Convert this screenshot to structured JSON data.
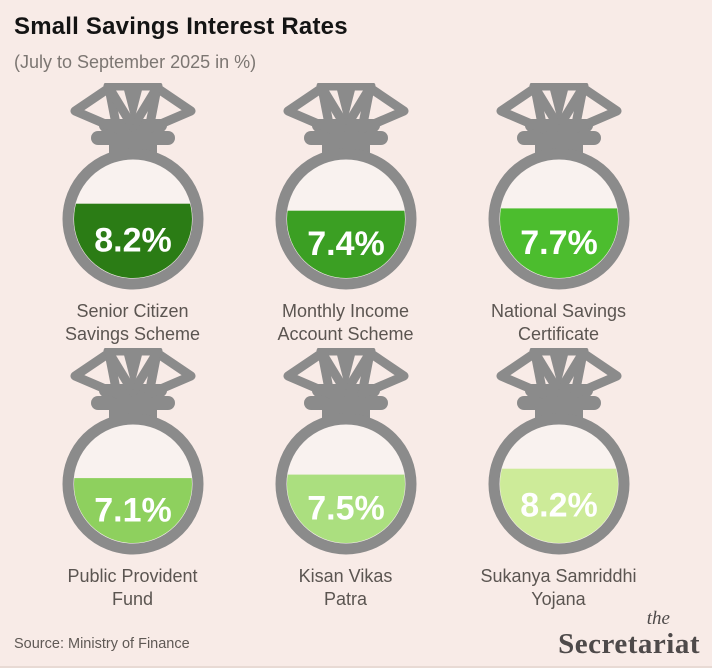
{
  "header": {
    "title": "Small Savings Interest Rates",
    "subtitle": "(July to September 2025 in %)"
  },
  "chart_data": {
    "type": "bar",
    "style": "pictogram-money-bags-fill",
    "title": "Small Savings Interest Rates",
    "subtitle": "(July to September 2025 in %)",
    "unit": "%",
    "categories": [
      "Senior Citizen Savings Scheme",
      "Monthly Income Account Scheme",
      "National Savings Certificate",
      "Public Provident Fund",
      "Kisan Vikas Patra",
      "Sukanya Samriddhi Yojana"
    ],
    "values": [
      8.2,
      7.4,
      7.7,
      7.1,
      7.5,
      8.2
    ],
    "items": [
      {
        "label_line1": "Senior Citizen",
        "label_line2": "Savings Scheme",
        "value_label": "8.2%",
        "fill_color": "#2b7c15",
        "fill_fraction": 0.63
      },
      {
        "label_line1": "Monthly Income",
        "label_line2": "Account Scheme",
        "value_label": "7.4%",
        "fill_color": "#3b9f23",
        "fill_fraction": 0.57
      },
      {
        "label_line1": "National Savings",
        "label_line2": "Certificate",
        "value_label": "7.7%",
        "fill_color": "#4cbd2e",
        "fill_fraction": 0.59
      },
      {
        "label_line1": "Public Provident",
        "label_line2": "Fund",
        "value_label": "7.1%",
        "fill_color": "#8ed05e",
        "fill_fraction": 0.55
      },
      {
        "label_line1": "Kisan Vikas",
        "label_line2": "Patra",
        "value_label": "7.5%",
        "fill_color": "#abdf7f",
        "fill_fraction": 0.58
      },
      {
        "label_line1": "Sukanya Samriddhi",
        "label_line2": "Yojana",
        "value_label": "8.2%",
        "fill_color": "#cdeb99",
        "fill_fraction": 0.63
      }
    ]
  },
  "footer": {
    "source": "Source: Ministry of Finance",
    "logo_line1": "the",
    "logo_line2": "Secretariat"
  },
  "colors": {
    "background": "#f8ebe7",
    "bag_gray": "#8b8b8b",
    "bag_interior": "#f9f2ef",
    "value_text": "#ffffff",
    "title_text": "#141414",
    "subtitle_text": "#7c7672",
    "label_text": "#5b5551",
    "logo_text": "#4e4a4a"
  }
}
